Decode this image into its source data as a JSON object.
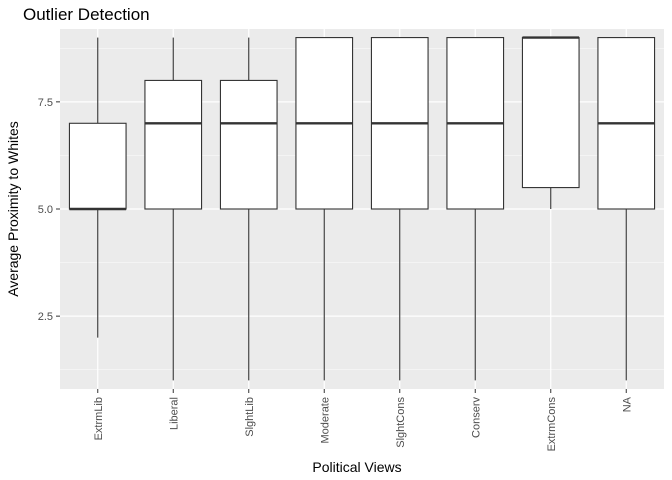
{
  "chart_data": {
    "type": "boxplot",
    "title": "Outlier Detection",
    "xlabel": "Political Views",
    "ylabel": "Average Proximity to Whites",
    "ylim": [
      0.8,
      9.2
    ],
    "y_ticks": [
      2.5,
      5.0,
      7.5
    ],
    "y_tick_labels": [
      "2.5",
      "5.0",
      "7.5"
    ],
    "grid": true,
    "categories": [
      "ExtrmLib",
      "Liberal",
      "SlghtLib",
      "Moderate",
      "SlghtCons",
      "Conserv",
      "ExtrmCons",
      "NA"
    ],
    "boxes": [
      {
        "category": "ExtrmLib",
        "min": 2,
        "q1": 5,
        "median": 5,
        "q3": 7,
        "max": 9
      },
      {
        "category": "Liberal",
        "min": 1,
        "q1": 5,
        "median": 7,
        "q3": 8,
        "max": 9
      },
      {
        "category": "SlghtLib",
        "min": 1,
        "q1": 5,
        "median": 7,
        "q3": 8,
        "max": 9
      },
      {
        "category": "Moderate",
        "min": 1,
        "q1": 5,
        "median": 7,
        "q3": 9,
        "max": 9
      },
      {
        "category": "SlghtCons",
        "min": 1,
        "q1": 5,
        "median": 7,
        "q3": 9,
        "max": 9
      },
      {
        "category": "Conserv",
        "min": 1,
        "q1": 5,
        "median": 7,
        "q3": 9,
        "max": 9
      },
      {
        "category": "ExtrmCons",
        "min": 5,
        "q1": 5.5,
        "median": 9,
        "q3": 9,
        "max": 9
      },
      {
        "category": "NA",
        "min": 1,
        "q1": 5,
        "median": 7,
        "q3": 9,
        "max": 9
      }
    ],
    "colors": {
      "panel_background": "#ebebeb",
      "grid_major": "#ffffff",
      "box_fill": "#ffffff",
      "box_stroke": "#333333"
    }
  }
}
